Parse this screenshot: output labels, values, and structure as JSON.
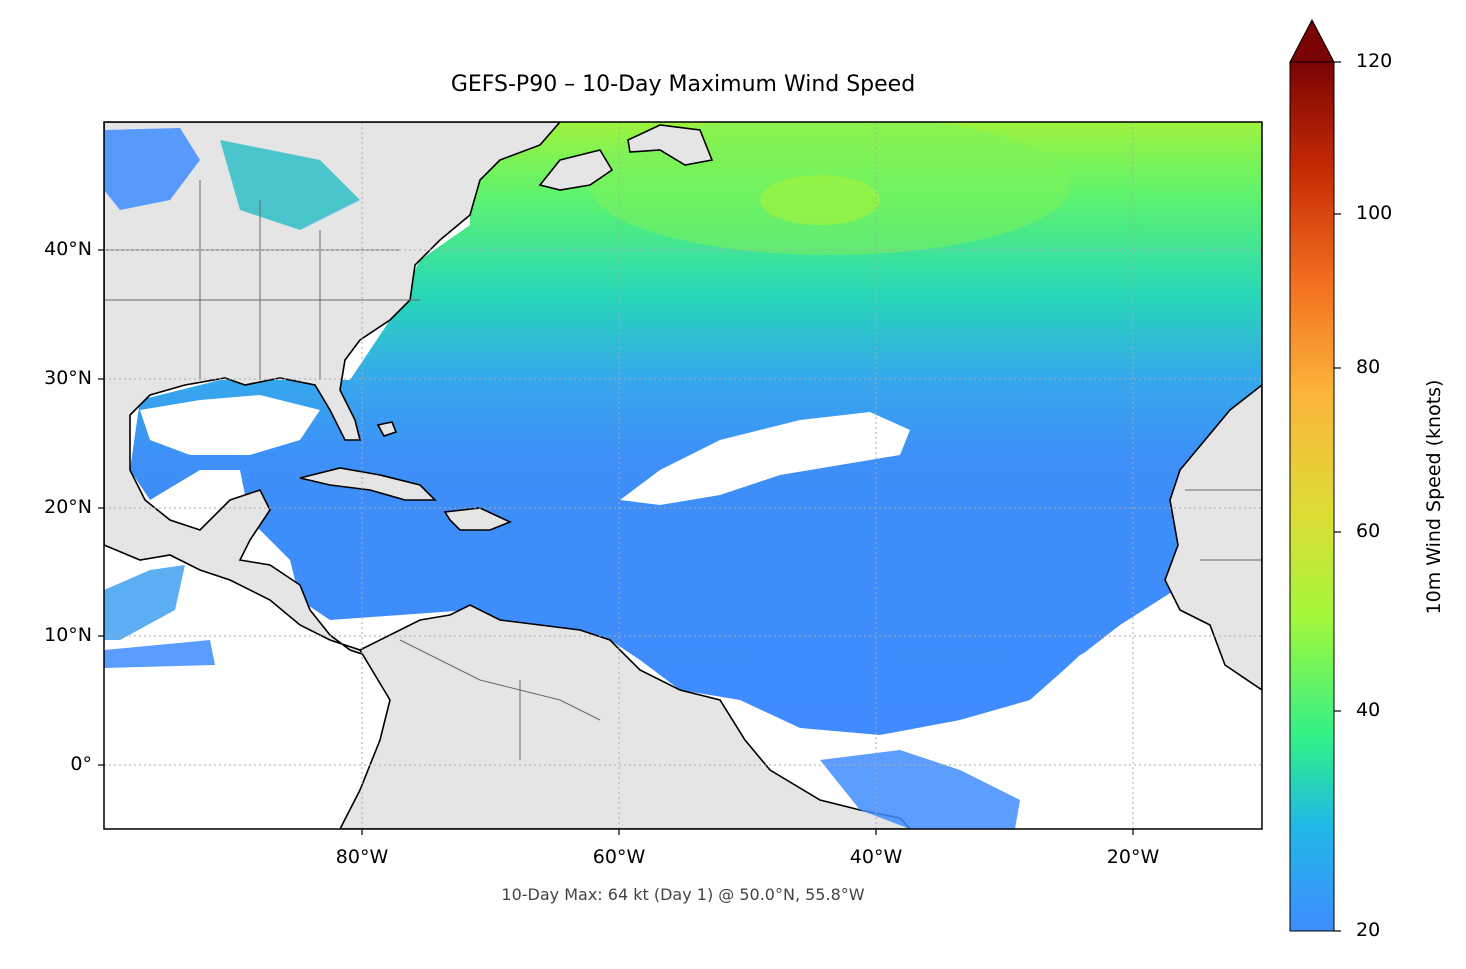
{
  "title": "GEFS-P90 – 10-Day Maximum Wind Speed",
  "footnote": "10-Day Max: 64 kt (Day 1) @ 50.0°N, 55.8°W",
  "latitude_labels": [
    "40°N",
    "30°N",
    "20°N",
    "10°N",
    "0°"
  ],
  "longitude_labels": [
    "80°W",
    "60°W",
    "40°W",
    "20°W"
  ],
  "colorbar": {
    "label": "10m Wind Speed (knots)",
    "ticks": [
      "20",
      "40",
      "60",
      "80",
      "100",
      "120"
    ],
    "min": 20,
    "max": 120,
    "extend": "max",
    "colors": [
      "#3f8dff",
      "#25c2d6",
      "#2ff08a",
      "#a2f73a",
      "#fbba39",
      "#f36d1e",
      "#c32a04",
      "#7a0403"
    ]
  },
  "colors": {
    "land": "#e5e5e5",
    "below_threshold": "#ffffff",
    "coastline": "#000000",
    "borders": "#666666"
  },
  "map_extent": {
    "lon_min": -100,
    "lon_max": -10,
    "lat_min": -5,
    "lat_max": 50
  },
  "maximum": {
    "value_kt": 64,
    "day": 1,
    "lat": 50.0,
    "lon": -55.8
  }
}
